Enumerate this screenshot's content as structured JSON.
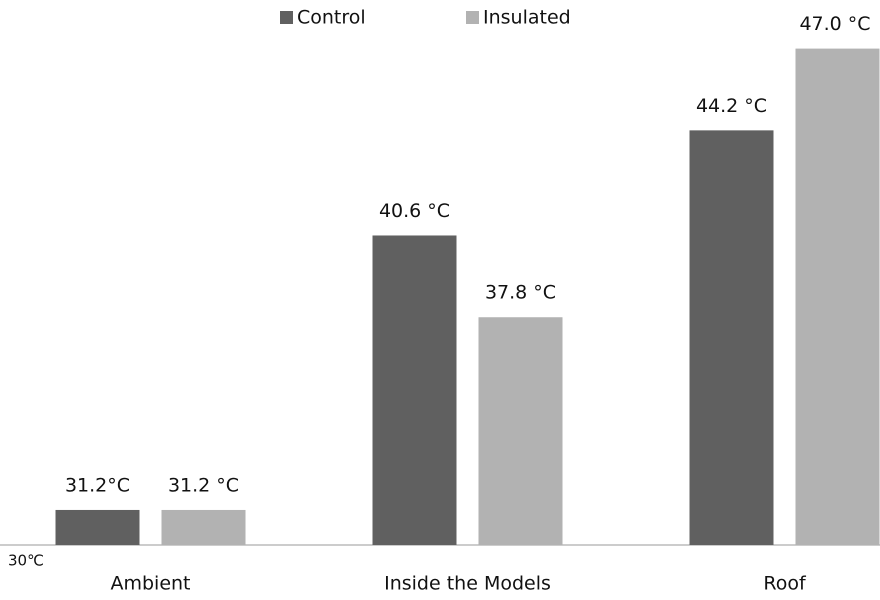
{
  "chart_data": {
    "type": "bar",
    "categories": [
      "Ambient",
      "Inside the Models",
      "Roof"
    ],
    "series": [
      {
        "name": "Control",
        "color": "#606060",
        "values": [
          31.2,
          40.6,
          44.2
        ],
        "value_labels": [
          "31.2°C",
          "40.6 °C",
          "44.2 °C"
        ]
      },
      {
        "name": "Insulated",
        "color": "#b2b2b2",
        "values": [
          31.2,
          37.8,
          47.0
        ],
        "value_labels": [
          "31.2 °C",
          "37.8 °C",
          "47.0 °C"
        ]
      }
    ],
    "ylim": [
      30,
      48
    ],
    "yticks": [
      {
        "value": 30,
        "label": "30℃"
      }
    ],
    "grid": false,
    "legend": "top"
  }
}
